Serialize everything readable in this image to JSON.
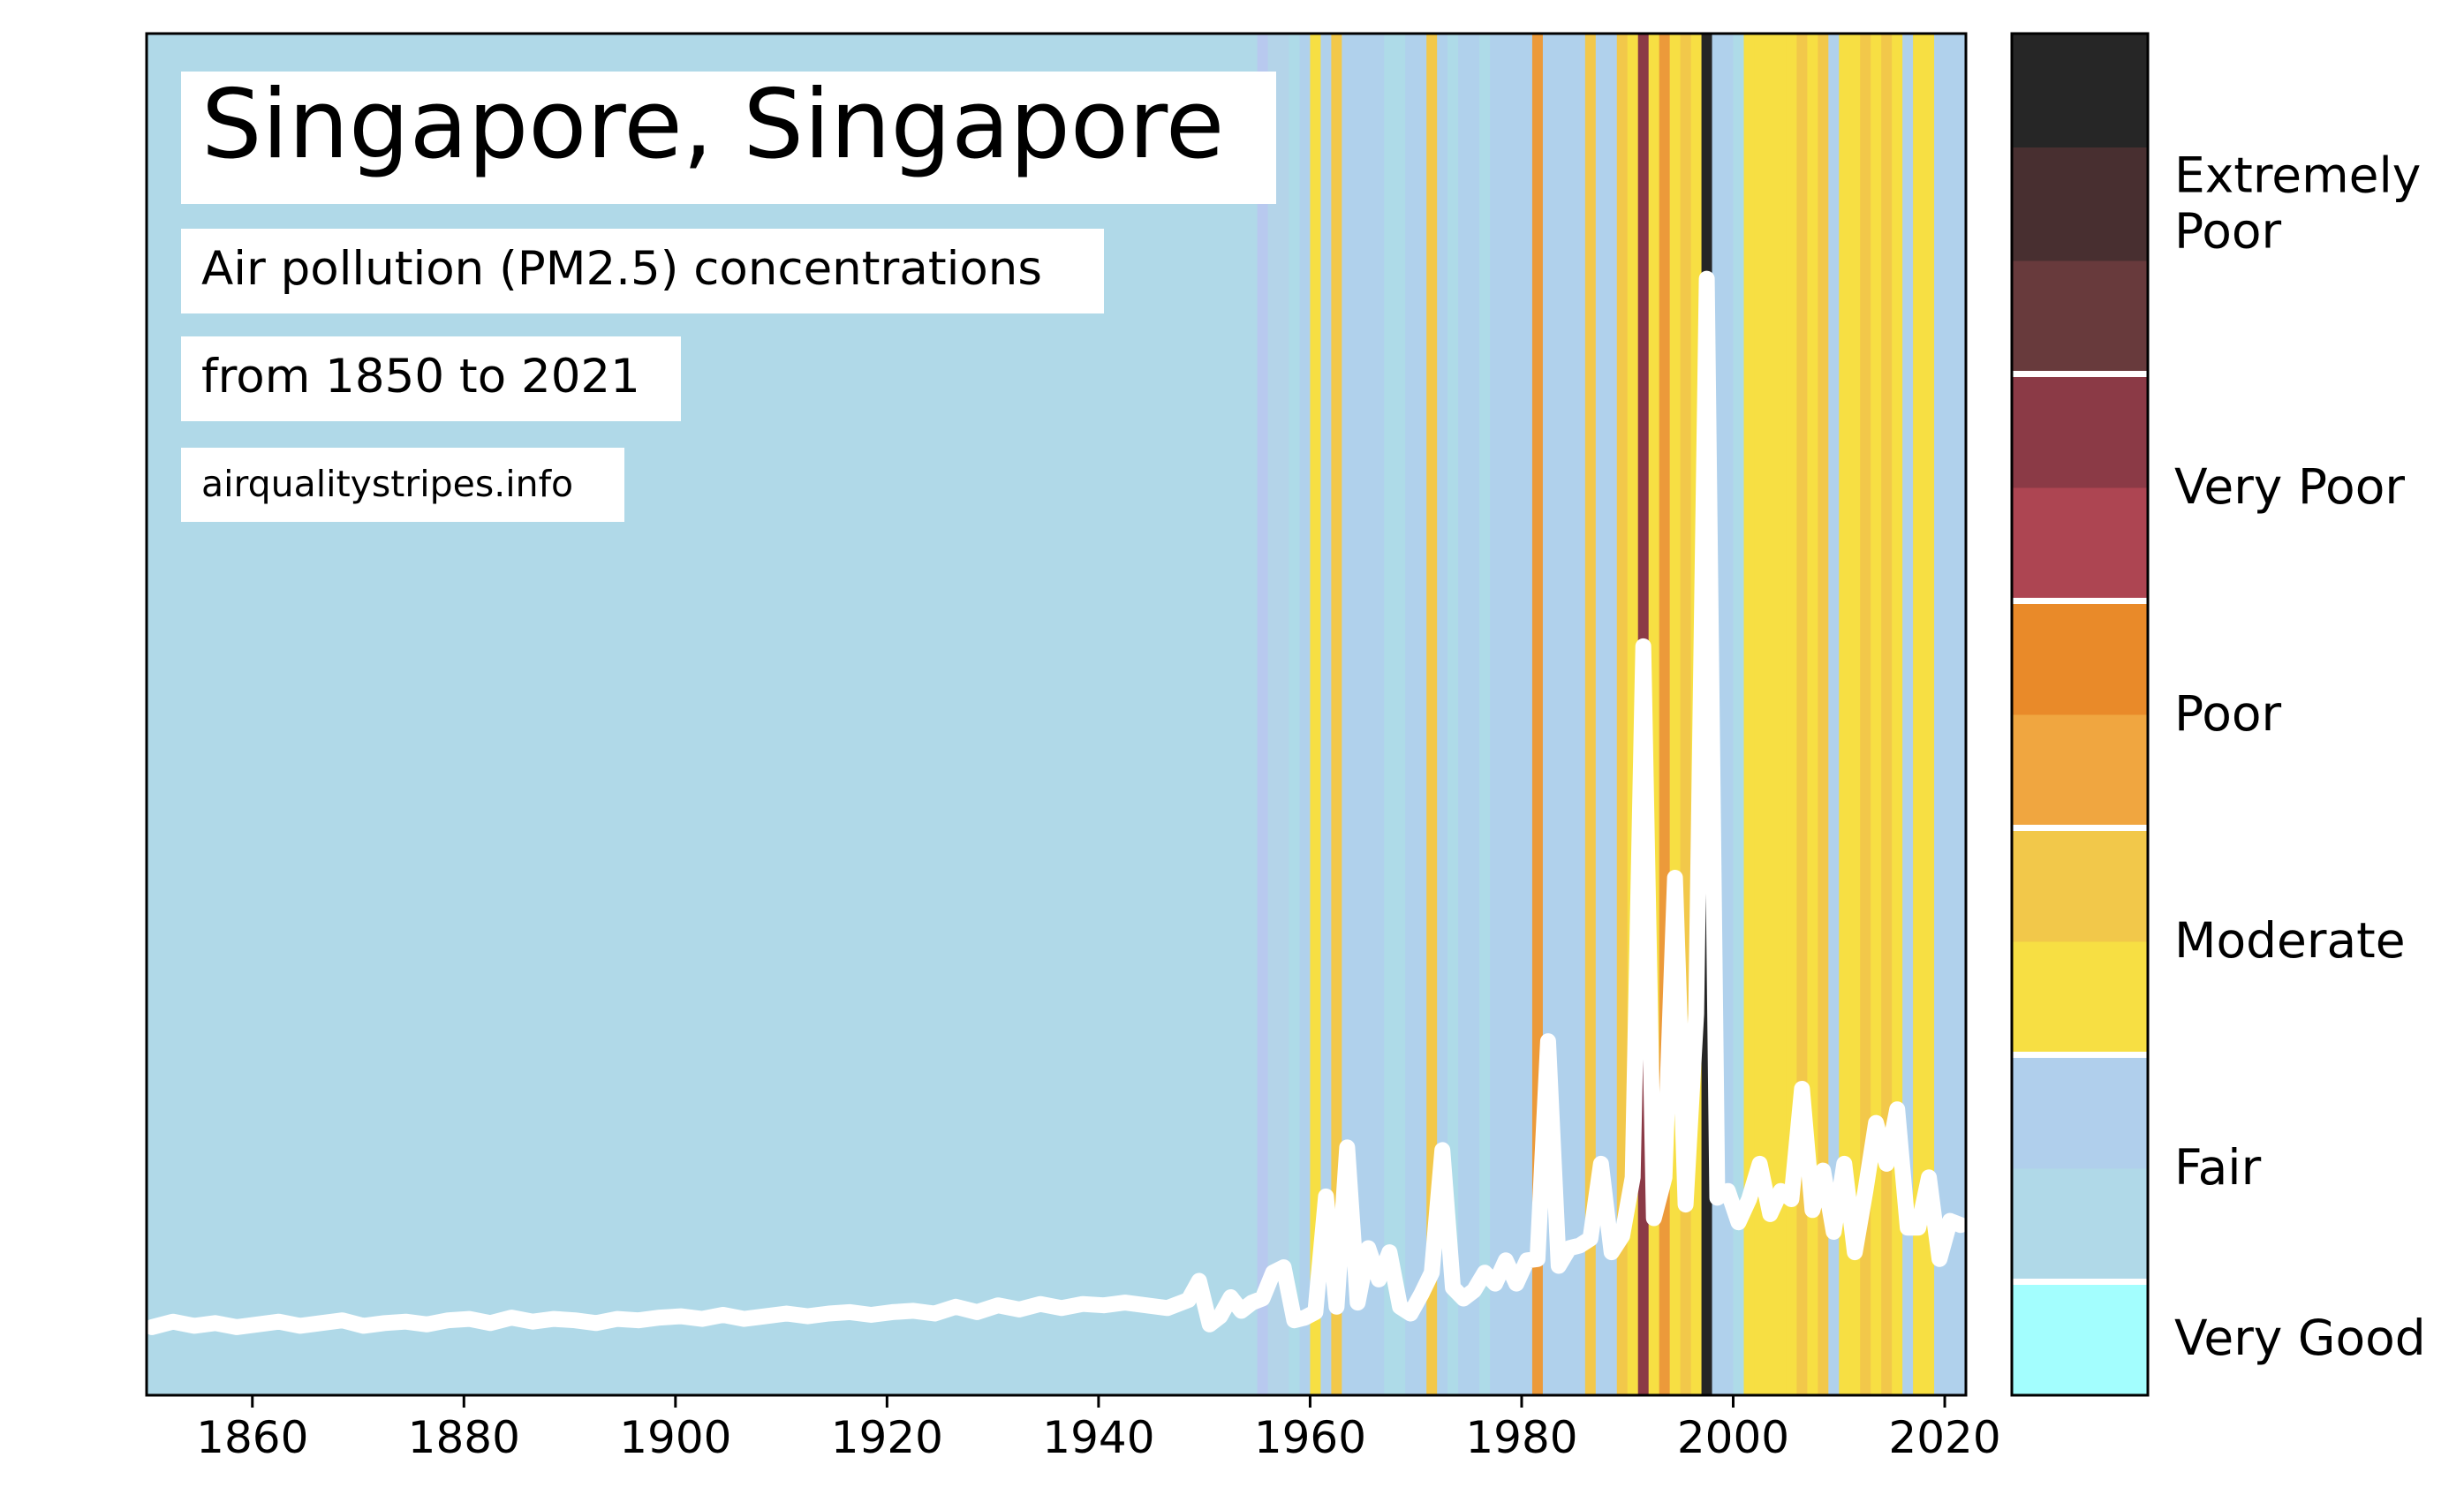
{
  "title": "Singapore, Singapore",
  "subtitle_line1": "Air pollution (PM2.5) concentrations",
  "subtitle_line2": "from 1850 to 2021",
  "source": "airqualitystripes.info",
  "chart_data": {
    "type": "line",
    "xlim": [
      1850,
      2022
    ],
    "ylim": [
      0,
      100
    ],
    "x_ticks": [
      1860,
      1880,
      1900,
      1920,
      1940,
      1960,
      1980,
      2000,
      2020
    ],
    "series": [
      {
        "x": [
          1850,
          1852,
          1854,
          1856,
          1858,
          1860,
          1862,
          1864,
          1866,
          1868,
          1870,
          1872,
          1874,
          1876,
          1878,
          1880,
          1882,
          1884,
          1886,
          1888,
          1890,
          1892,
          1894,
          1896,
          1898,
          1900,
          1902,
          1904,
          1906,
          1908,
          1910,
          1912,
          1914,
          1916,
          1918,
          1920,
          1922,
          1924,
          1926,
          1928,
          1930,
          1932,
          1934,
          1936,
          1938,
          1940,
          1942,
          1944,
          1946,
          1948,
          1949,
          1950,
          1951,
          1952,
          1953,
          1954,
          1955,
          1956,
          1957,
          1958,
          1959,
          1960,
          1961,
          1962,
          1963,
          1964,
          1965,
          1966,
          1967,
          1968,
          1969,
          1970,
          1971,
          1972,
          1973,
          1974,
          1975,
          1976,
          1977,
          1978,
          1979,
          1980,
          1981,
          1982,
          1983,
          1984,
          1985,
          1986,
          1987,
          1988,
          1989,
          1990,
          1991,
          1992,
          1993,
          1994,
          1995,
          1996,
          1997,
          1998,
          1999,
          2000,
          2001,
          2002,
          2003,
          2004,
          2005,
          2006,
          2007,
          2008,
          2009,
          2010,
          2011,
          2012,
          2013,
          2014,
          2015,
          2016,
          2017,
          2018,
          2019,
          2020,
          2021
        ],
        "y": [
          5.0,
          5.4,
          5.1,
          5.3,
          5.0,
          5.2,
          5.4,
          5.1,
          5.3,
          5.5,
          5.1,
          5.3,
          5.4,
          5.2,
          5.5,
          5.6,
          5.3,
          5.7,
          5.4,
          5.6,
          5.5,
          5.3,
          5.6,
          5.5,
          5.7,
          5.8,
          5.6,
          5.9,
          5.6,
          5.8,
          6.0,
          5.8,
          6.0,
          6.1,
          5.9,
          6.1,
          6.2,
          6.0,
          6.5,
          6.1,
          6.6,
          6.3,
          6.7,
          6.4,
          6.7,
          6.6,
          6.8,
          6.6,
          6.4,
          7.0,
          8.4,
          5.2,
          5.8,
          7.2,
          6.2,
          6.8,
          7.1,
          9.0,
          9.4,
          5.5,
          5.7,
          6.1,
          14.6,
          6.5,
          18.2,
          6.8,
          10.8,
          8.5,
          10.5,
          6.5,
          6.0,
          7.4,
          9.0,
          18.0,
          7.9,
          7.1,
          7.7,
          9.0,
          8.2,
          9.9,
          8.2,
          9.9,
          10.0,
          26.0,
          9.5,
          10.8,
          11.0,
          11.5,
          17.0,
          10.5,
          11.7,
          16.0,
          55.0,
          13.0,
          16.0,
          38.0,
          14.0,
          28.0,
          82.0,
          14.5,
          15.0,
          12.7,
          14.4,
          17.0,
          13.3,
          15.0,
          14.4,
          22.5,
          13.6,
          16.5,
          12.0,
          17.0,
          10.5,
          15.0,
          20.0,
          17.0,
          21.0,
          12.3,
          12.3,
          16.0,
          10.0,
          12.8,
          12.5
        ]
      }
    ],
    "stripe_colors": {
      "1955": "#b8c9ef",
      "1956": "#b4d4e9",
      "1957": "#b4d4e9",
      "1958": "#aedbe8",
      "1959": "#b0d1ec",
      "1960": "#f7df43",
      "1961": "#b0d1ec",
      "1962": "#f2c84a",
      "1963": "#b0d1ec",
      "1964": "#b0d1ec",
      "1965": "#b0d1ec",
      "1966": "#b0d1ec",
      "1967": "#aedbe8",
      "1968": "#aedbe8",
      "1969": "#b0d1ec",
      "1970": "#b0d1ec",
      "1971": "#f2c84a",
      "1972": "#b0d1ec",
      "1973": "#aedbe8",
      "1974": "#b0d1ec",
      "1975": "#b0d1ec",
      "1976": "#aedbe8",
      "1977": "#b0d1ec",
      "1978": "#b0d1ec",
      "1979": "#b0d1ec",
      "1980": "#b0d1ec",
      "1981": "#ec9a3a",
      "1982": "#b0d1ec",
      "1983": "#b0d1ec",
      "1984": "#b0d1ec",
      "1985": "#b0d1ec",
      "1986": "#f2c84a",
      "1987": "#b0d1ec",
      "1988": "#b0d1ec",
      "1989": "#f2c84a",
      "1990": "#f7df43",
      "1991": "#8b3a46",
      "1992": "#f7df43",
      "1993": "#ec9a3a",
      "1994": "#f7df43",
      "1995": "#f2c84a",
      "1996": "#f7df43",
      "1997": "#262626",
      "1998": "#b0d1ec",
      "1999": "#b0d1ec",
      "2000": "#aedbe8",
      "2001": "#f7df43",
      "2002": "#f7df43",
      "2003": "#f7df43",
      "2004": "#f7df43",
      "2005": "#f7df43",
      "2006": "#f2c84a",
      "2007": "#f7df43",
      "2008": "#f2c84a",
      "2009": "#b0d1ec",
      "2010": "#f7df43",
      "2011": "#f7df43",
      "2012": "#f2c84a",
      "2013": "#f7df43",
      "2014": "#f2c84a",
      "2015": "#f7df43",
      "2016": "#b0d1ec",
      "2017": "#f7df43",
      "2018": "#f7df43",
      "2019": "#b0d1ec",
      "2020": "#b0d1ec",
      "2021": "#b0d1ec"
    },
    "stripe_default_color": "#b0d9e8",
    "line_color": "#ffffff",
    "legend": {
      "position": "right",
      "categories": [
        {
          "label": "Very Good",
          "colors": [
            "#a3fefe"
          ]
        },
        {
          "label": "Fair",
          "colors": [
            "#b0d9e8",
            "#b0cfec"
          ]
        },
        {
          "label": "Moderate",
          "colors": [
            "#f7df43",
            "#f2c84a"
          ]
        },
        {
          "label": "Poor",
          "colors": [
            "#f0a640",
            "#e98a29"
          ]
        },
        {
          "label": "Very Poor",
          "colors": [
            "#ad4552",
            "#8b3a46"
          ]
        },
        {
          "label": "Extremely Poor",
          "colors": [
            "#683a3c",
            "#482f30",
            "#262626"
          ]
        }
      ],
      "label_lines": [
        [
          "Very Good"
        ],
        [
          "Fair"
        ],
        [
          "Moderate"
        ],
        [
          "Poor"
        ],
        [
          "Very Poor"
        ],
        [
          "Extremely",
          "Poor"
        ]
      ]
    }
  }
}
